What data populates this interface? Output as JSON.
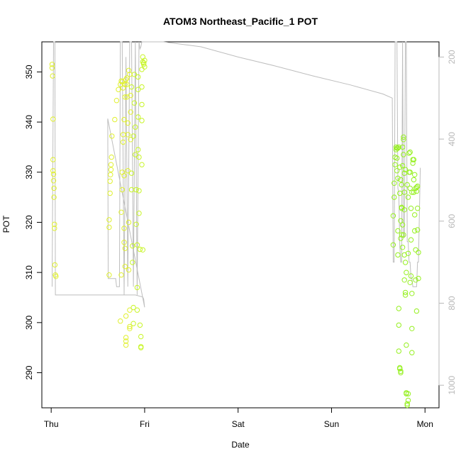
{
  "chart_data": {
    "type": "scatter",
    "title": "ATOM3 Northeast_Pacific_1 POT",
    "xlabel": "Date",
    "ylabel": "POT",
    "x_ticks": [
      "Thu",
      "Fri",
      "Sat",
      "Sun",
      "Mon"
    ],
    "y_ticks": [
      290,
      300,
      310,
      320,
      330,
      340,
      350
    ],
    "ylim": [
      283,
      356
    ],
    "xlim": [
      -0.1,
      4.15
    ],
    "secondary_axis": {
      "side": "right",
      "ticks": [
        200,
        400,
        600,
        800,
        1000
      ],
      "range_top_to_bottom": [
        163,
        1055
      ],
      "color": "#b8b8b8"
    },
    "grid": false,
    "colors": {
      "points_day1": "#e0f030",
      "points_day1_late": "#c8f528",
      "points_day4": "#96f020",
      "pressure_line": "#bebebe"
    },
    "series": [
      {
        "values": [
          [
            0.01,
            351.5
          ],
          [
            0.01,
            350.8
          ],
          [
            0.015,
            349.2
          ],
          [
            0.02,
            340.6
          ],
          [
            0.02,
            332.5
          ],
          [
            0.02,
            330.3
          ],
          [
            0.025,
            329.6
          ],
          [
            0.025,
            328.3
          ],
          [
            0.03,
            326.8
          ],
          [
            0.03,
            325
          ],
          [
            0.035,
            319.6
          ],
          [
            0.035,
            318.8
          ],
          [
            0.04,
            311.5
          ],
          [
            0.045,
            309.5
          ],
          [
            0.05,
            309.2
          ],
          [
            0.62,
            309.5
          ],
          [
            0.62,
            320.5
          ],
          [
            0.62,
            319
          ],
          [
            0.63,
            325.8
          ],
          [
            0.63,
            328.2
          ],
          [
            0.635,
            329.5
          ],
          [
            0.64,
            330.5
          ],
          [
            0.64,
            331.5
          ],
          [
            0.645,
            333
          ],
          [
            0.65,
            337.2
          ],
          [
            0.68,
            340.5
          ],
          [
            0.7,
            344.3
          ],
          [
            0.72,
            346.5
          ],
          [
            0.74,
            347.5
          ],
          [
            0.75,
            348.2
          ],
          [
            0.76,
            348
          ],
          [
            0.77,
            346.8
          ],
          [
            0.77,
            336
          ],
          [
            0.78,
            329.3
          ],
          [
            0.78,
            318.8
          ],
          [
            0.78,
            316
          ],
          [
            0.79,
            314.8
          ],
          [
            0.79,
            311.2
          ],
          [
            0.8,
            301.3
          ],
          [
            0.8,
            297
          ],
          [
            0.8,
            296.3
          ],
          [
            0.8,
            295.5
          ],
          [
            0.81,
            347.5
          ],
          [
            0.81,
            345
          ],
          [
            0.82,
            339.8
          ],
          [
            0.82,
            337.5
          ],
          [
            0.82,
            330.3
          ],
          [
            0.83,
            320
          ],
          [
            0.83,
            310.5
          ],
          [
            0.84,
            302.5
          ],
          [
            0.84,
            299.2
          ],
          [
            0.84,
            298.8
          ],
          [
            0.85,
            345.3
          ],
          [
            0.85,
            342
          ],
          [
            0.85,
            336.5
          ],
          [
            0.86,
            329.8
          ],
          [
            0.86,
            326.5
          ],
          [
            0.87,
            315.3
          ],
          [
            0.87,
            312
          ],
          [
            0.88,
            303
          ],
          [
            0.88,
            299.8
          ],
          [
            0.89,
            349.5
          ],
          [
            0.89,
            343.8
          ],
          [
            0.9,
            339
          ],
          [
            0.9,
            333.5
          ],
          [
            0.91,
            326.5
          ],
          [
            0.91,
            319.6
          ],
          [
            0.92,
            315.5
          ],
          [
            0.92,
            307
          ],
          [
            0.92,
            302.5
          ],
          [
            0.93,
            349
          ],
          [
            0.93,
            346.5
          ],
          [
            0.93,
            341
          ],
          [
            0.94,
            333
          ],
          [
            0.94,
            326.3
          ],
          [
            0.94,
            321.8
          ],
          [
            0.95,
            314.6
          ],
          [
            0.95,
            299.5
          ],
          [
            0.96,
            297.2
          ],
          [
            0.96,
            295.2
          ],
          [
            0.96,
            295
          ],
          [
            0.97,
            350.5
          ],
          [
            0.97,
            347
          ],
          [
            0.97,
            340.3
          ],
          [
            0.97,
            331.5
          ],
          [
            0.98,
            314.5
          ],
          [
            0.98,
            352
          ],
          [
            0.98,
            353
          ],
          [
            0.99,
            351.5
          ],
          [
            0.99,
            351.8
          ],
          [
            1,
            352.3
          ],
          [
            1,
            351
          ],
          [
            0.97,
            343.5
          ],
          [
            0.93,
            334.5
          ],
          [
            0.88,
            337.2
          ],
          [
            0.86,
            347
          ],
          [
            0.84,
            349.5
          ],
          [
            0.83,
            350.3
          ],
          [
            0.81,
            348.8
          ],
          [
            0.8,
            348.5
          ],
          [
            0.79,
            347.5
          ],
          [
            0.79,
            345
          ],
          [
            0.78,
            340.5
          ],
          [
            0.77,
            337.5
          ],
          [
            0.76,
            330
          ],
          [
            0.76,
            326.5
          ],
          [
            0.75,
            322
          ],
          [
            0.75,
            309.5
          ],
          [
            0.74,
            300.3
          ],
          [
            3.66,
            315.5
          ],
          [
            3.66,
            321.3
          ],
          [
            3.67,
            325
          ],
          [
            3.67,
            327.8
          ],
          [
            3.68,
            331.5
          ],
          [
            3.68,
            333
          ],
          [
            3.69,
            334.5
          ],
          [
            3.69,
            335
          ],
          [
            3.7,
            334.8
          ],
          [
            3.7,
            332.8
          ],
          [
            3.7,
            330.3
          ],
          [
            3.71,
            328.8
          ],
          [
            3.71,
            318.3
          ],
          [
            3.71,
            313.5
          ],
          [
            3.72,
            302.8
          ],
          [
            3.72,
            299.5
          ],
          [
            3.72,
            294.3
          ],
          [
            3.73,
            291
          ],
          [
            3.73,
            290.8
          ],
          [
            3.74,
            290.3
          ],
          [
            3.74,
            290
          ],
          [
            3.74,
            316.8
          ],
          [
            3.75,
            317.5
          ],
          [
            3.75,
            322.8
          ],
          [
            3.75,
            327.5
          ],
          [
            3.76,
            331.3
          ],
          [
            3.76,
            335
          ],
          [
            3.77,
            337
          ],
          [
            3.77,
            336.5
          ],
          [
            3.77,
            333.5
          ],
          [
            3.78,
            329.8
          ],
          [
            3.78,
            326
          ],
          [
            3.78,
            322.5
          ],
          [
            3.79,
            312
          ],
          [
            3.79,
            306
          ],
          [
            3.8,
            295.5
          ],
          [
            3.8,
            286
          ],
          [
            3.8,
            285.8
          ],
          [
            3.81,
            283.8
          ],
          [
            3.81,
            283.5
          ],
          [
            3.82,
            285.8
          ],
          [
            3.82,
            284.5
          ],
          [
            3.82,
            325
          ],
          [
            3.83,
            330
          ],
          [
            3.83,
            333.8
          ],
          [
            3.84,
            334
          ],
          [
            3.84,
            330
          ],
          [
            3.84,
            326.8
          ],
          [
            3.85,
            322.8
          ],
          [
            3.85,
            316.5
          ],
          [
            3.85,
            309.3
          ],
          [
            3.86,
            305.8
          ],
          [
            3.86,
            298.8
          ],
          [
            3.86,
            294
          ],
          [
            3.87,
            332.5
          ],
          [
            3.87,
            331.8
          ],
          [
            3.88,
            332.5
          ],
          [
            3.88,
            326
          ],
          [
            3.89,
            321.5
          ],
          [
            3.89,
            318.3
          ],
          [
            3.9,
            314.5
          ],
          [
            3.9,
            308.5
          ],
          [
            3.91,
            302.3
          ],
          [
            3.91,
            327
          ],
          [
            3.92,
            322.8
          ],
          [
            3.92,
            318.5
          ],
          [
            3.93,
            314
          ],
          [
            3.93,
            308.8
          ],
          [
            3.76,
            315
          ],
          [
            3.78,
            308.5
          ],
          [
            3.8,
            310
          ],
          [
            3.82,
            313.8
          ],
          [
            3.84,
            308
          ],
          [
            3.79,
            330.5
          ],
          [
            3.73,
            325.8
          ],
          [
            3.74,
            320.3
          ],
          [
            3.81,
            327.5
          ],
          [
            3.86,
            326
          ],
          [
            3.88,
            328.5
          ],
          [
            3.89,
            329.5
          ],
          [
            3.9,
            326.8
          ],
          [
            3.91,
            326.2
          ],
          [
            3.92,
            327.2
          ],
          [
            3.71,
            334.8
          ],
          [
            3.72,
            335
          ],
          [
            3.73,
            331
          ],
          [
            3.74,
            328.5
          ],
          [
            3.75,
            323
          ],
          [
            3.76,
            319.5
          ],
          [
            3.77,
            317.5
          ],
          [
            3.78,
            313.5
          ],
          [
            3.79,
            305.5
          ]
        ]
      },
      {
        "type": "line",
        "axis": "right",
        "values": [
          [
            0.01,
            760
          ],
          [
            0.025,
            160
          ],
          [
            0.04,
            160
          ],
          [
            0.045,
            780
          ],
          [
            0.5,
            780
          ],
          [
            0.7,
            780
          ],
          [
            0.9,
            780
          ],
          [
            0.98,
            785
          ],
          [
            0.99,
            790
          ],
          [
            1.0,
            810
          ],
          [
            0.605,
            350
          ],
          [
            0.61,
            740
          ],
          [
            0.64,
            740
          ],
          [
            0.66,
            740
          ],
          [
            0.69,
            740
          ],
          [
            0.7,
            760
          ],
          [
            0.72,
            760
          ],
          [
            0.73,
            760
          ],
          [
            0.74,
            130
          ],
          [
            0.76,
            160
          ],
          [
            0.78,
            780
          ],
          [
            0.8,
            200
          ],
          [
            0.82,
            760
          ],
          [
            0.84,
            130
          ],
          [
            0.86,
            160
          ],
          [
            0.88,
            760
          ],
          [
            0.9,
            160
          ],
          [
            0.92,
            780
          ],
          [
            0.94,
            160
          ],
          [
            0.95,
            180
          ],
          [
            0.96,
            175
          ],
          [
            0.97,
            160
          ],
          [
            1.0,
            150
          ],
          [
            1.2,
            160
          ],
          [
            1.6,
            175
          ],
          [
            2.0,
            200
          ],
          [
            2.4,
            222
          ],
          [
            2.8,
            246
          ],
          [
            3.2,
            268
          ],
          [
            3.55,
            290
          ],
          [
            3.65,
            300
          ],
          [
            3.66,
            700
          ],
          [
            3.67,
            700
          ],
          [
            3.68,
            130
          ],
          [
            3.69,
            140
          ],
          [
            3.7,
            130
          ],
          [
            3.71,
            520
          ],
          [
            3.72,
            530
          ],
          [
            3.73,
            660
          ],
          [
            3.74,
            700
          ],
          [
            3.75,
            700
          ],
          [
            3.76,
            130
          ],
          [
            3.77,
            640
          ],
          [
            3.78,
            640
          ],
          [
            3.79,
            130
          ],
          [
            3.8,
            130
          ],
          [
            3.81,
            650
          ],
          [
            3.82,
            650
          ],
          [
            3.83,
            700
          ],
          [
            3.84,
            700
          ],
          [
            3.85,
            740
          ],
          [
            3.86,
            740
          ],
          [
            3.87,
            760
          ],
          [
            3.88,
            760
          ],
          [
            3.89,
            760
          ],
          [
            3.9,
            760
          ],
          [
            3.91,
            760
          ],
          [
            3.92,
            700
          ],
          [
            3.93,
            700
          ],
          [
            3.95,
            470
          ]
        ]
      }
    ]
  }
}
